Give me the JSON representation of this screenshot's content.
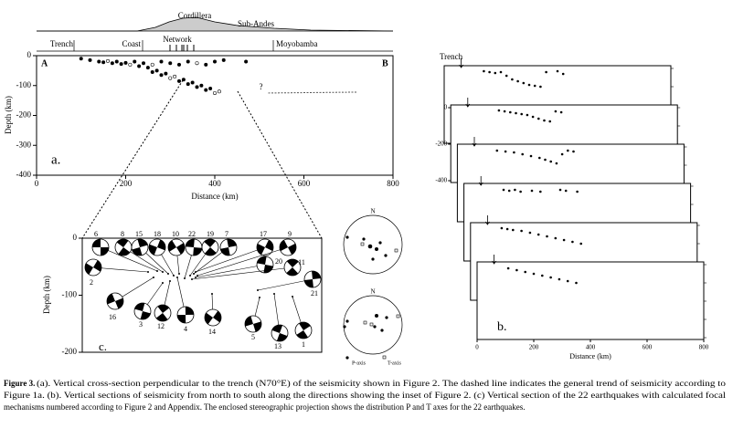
{
  "panel_a": {
    "profile_labels": {
      "cordillera": "Cordillera",
      "sub_andes": "Sub-Andes",
      "trench": "Trench",
      "coast": "Coast",
      "network": "Network",
      "moyobamba": "Moyobamba"
    },
    "section_start": "A",
    "section_end": "B",
    "panel_label": "a.",
    "query": "?",
    "xlabel": "Distance (km)",
    "ylabel": "Depth (km)",
    "xlim": [
      0,
      800
    ],
    "ylim": [
      -400,
      0
    ],
    "xticks": [
      0,
      200,
      400,
      600,
      800
    ],
    "yticks": [
      0,
      -100,
      -200,
      -300,
      -400
    ],
    "events": {
      "x": [
        100,
        120,
        140,
        150,
        160,
        170,
        180,
        190,
        200,
        210,
        220,
        230,
        240,
        250,
        260,
        270,
        280,
        290,
        300,
        310,
        320,
        330,
        340,
        350,
        360,
        370,
        380,
        390,
        400,
        410,
        420,
        470,
        260,
        280,
        300,
        320,
        340,
        360,
        380,
        400
      ],
      "y": [
        -10,
        -15,
        -20,
        -22,
        -18,
        -25,
        -20,
        -28,
        -24,
        -30,
        -20,
        -35,
        -25,
        -40,
        -30,
        -50,
        -20,
        -60,
        -25,
        -70,
        -30,
        -80,
        -20,
        -90,
        -25,
        -100,
        -30,
        -110,
        -20,
        -120,
        -15,
        -20,
        -55,
        -65,
        -75,
        -85,
        -95,
        -105,
        -115,
        -125
      ]
    },
    "trend": {
      "x": [
        520,
        720
      ],
      "y": [
        -125,
        -122
      ]
    }
  },
  "panel_b": {
    "panel_label": "b.",
    "trench": "Trench",
    "xlabel": "Distance (km)",
    "xlim": [
      0,
      800
    ],
    "ylim": [
      -400,
      0
    ],
    "xticks": [
      0,
      200,
      400,
      600,
      800
    ],
    "yticks": [
      0,
      -200,
      -400
    ],
    "sections": [
      {
        "x": [
          140,
          160,
          180,
          200,
          220,
          240,
          260,
          280,
          300,
          320,
          340,
          360,
          400,
          420
        ],
        "y": [
          -15,
          -20,
          -25,
          -20,
          -40,
          -60,
          -70,
          -80,
          -90,
          -95,
          -100,
          -20,
          -15,
          -30
        ]
      },
      {
        "x": [
          170,
          190,
          210,
          230,
          250,
          270,
          290,
          310,
          330,
          350,
          370,
          390
        ],
        "y": [
          -15,
          -20,
          -25,
          -30,
          -35,
          -40,
          -50,
          -60,
          -70,
          -75,
          -20,
          -25
        ]
      },
      {
        "x": [
          140,
          170,
          200,
          230,
          260,
          290,
          310,
          330,
          350,
          370,
          390,
          410
        ],
        "y": [
          -20,
          -25,
          -30,
          -40,
          -50,
          -60,
          -70,
          -80,
          -90,
          -40,
          -20,
          -25
        ]
      },
      {
        "x": [
          140,
          160,
          180,
          200,
          240,
          270,
          340,
          360,
          400
        ],
        "y": [
          -20,
          -25,
          -20,
          -30,
          -25,
          -30,
          -20,
          -25,
          -30
        ]
      },
      {
        "x": [
          110,
          130,
          150,
          180,
          210,
          240,
          270,
          300,
          330,
          360,
          390
        ],
        "y": [
          -15,
          -20,
          -25,
          -30,
          -40,
          -50,
          -60,
          -70,
          -80,
          -90,
          -100
        ]
      },
      {
        "x": [
          110,
          140,
          170,
          200,
          230,
          260,
          290,
          320,
          350
        ],
        "y": [
          -20,
          -30,
          -40,
          -50,
          -60,
          -70,
          -80,
          -90,
          -100
        ]
      }
    ]
  },
  "panel_c": {
    "panel_label": "c.",
    "ylabel": "Depth (km)",
    "ylim": [
      -200,
      0
    ],
    "yticks": [
      0,
      -100,
      -200
    ],
    "mechanisms": [
      "6",
      "8",
      "15",
      "18",
      "10",
      "22",
      "19",
      "7",
      "17",
      "9",
      "20",
      "11",
      "21",
      "2",
      "16",
      "3",
      "12",
      "4",
      "14",
      "5",
      "13",
      "1"
    ]
  },
  "stereonets": {
    "north": "N",
    "p_axis": "P-axis",
    "t_axis": "T-axis"
  },
  "caption": {
    "label": "Figure 3.",
    "lines": [
      "(a). Vertical cross-section perpendicular to the trench (N70°E) of the seismicity shown in Figure 2. The dashed line indicates the general trend of seismicity according to",
      "Figure 1a. (b). Vertical sections of seismicity from north to south along the directions showing the inset of Figure 2. (c) Vertical section of the 22 earthquakes with calculated focal",
      "mechanisms numbered according to Figure 2 and Appendix. The enclosed stereographic projection shows the distribution P and T axes for the 22 earthquakes."
    ]
  }
}
